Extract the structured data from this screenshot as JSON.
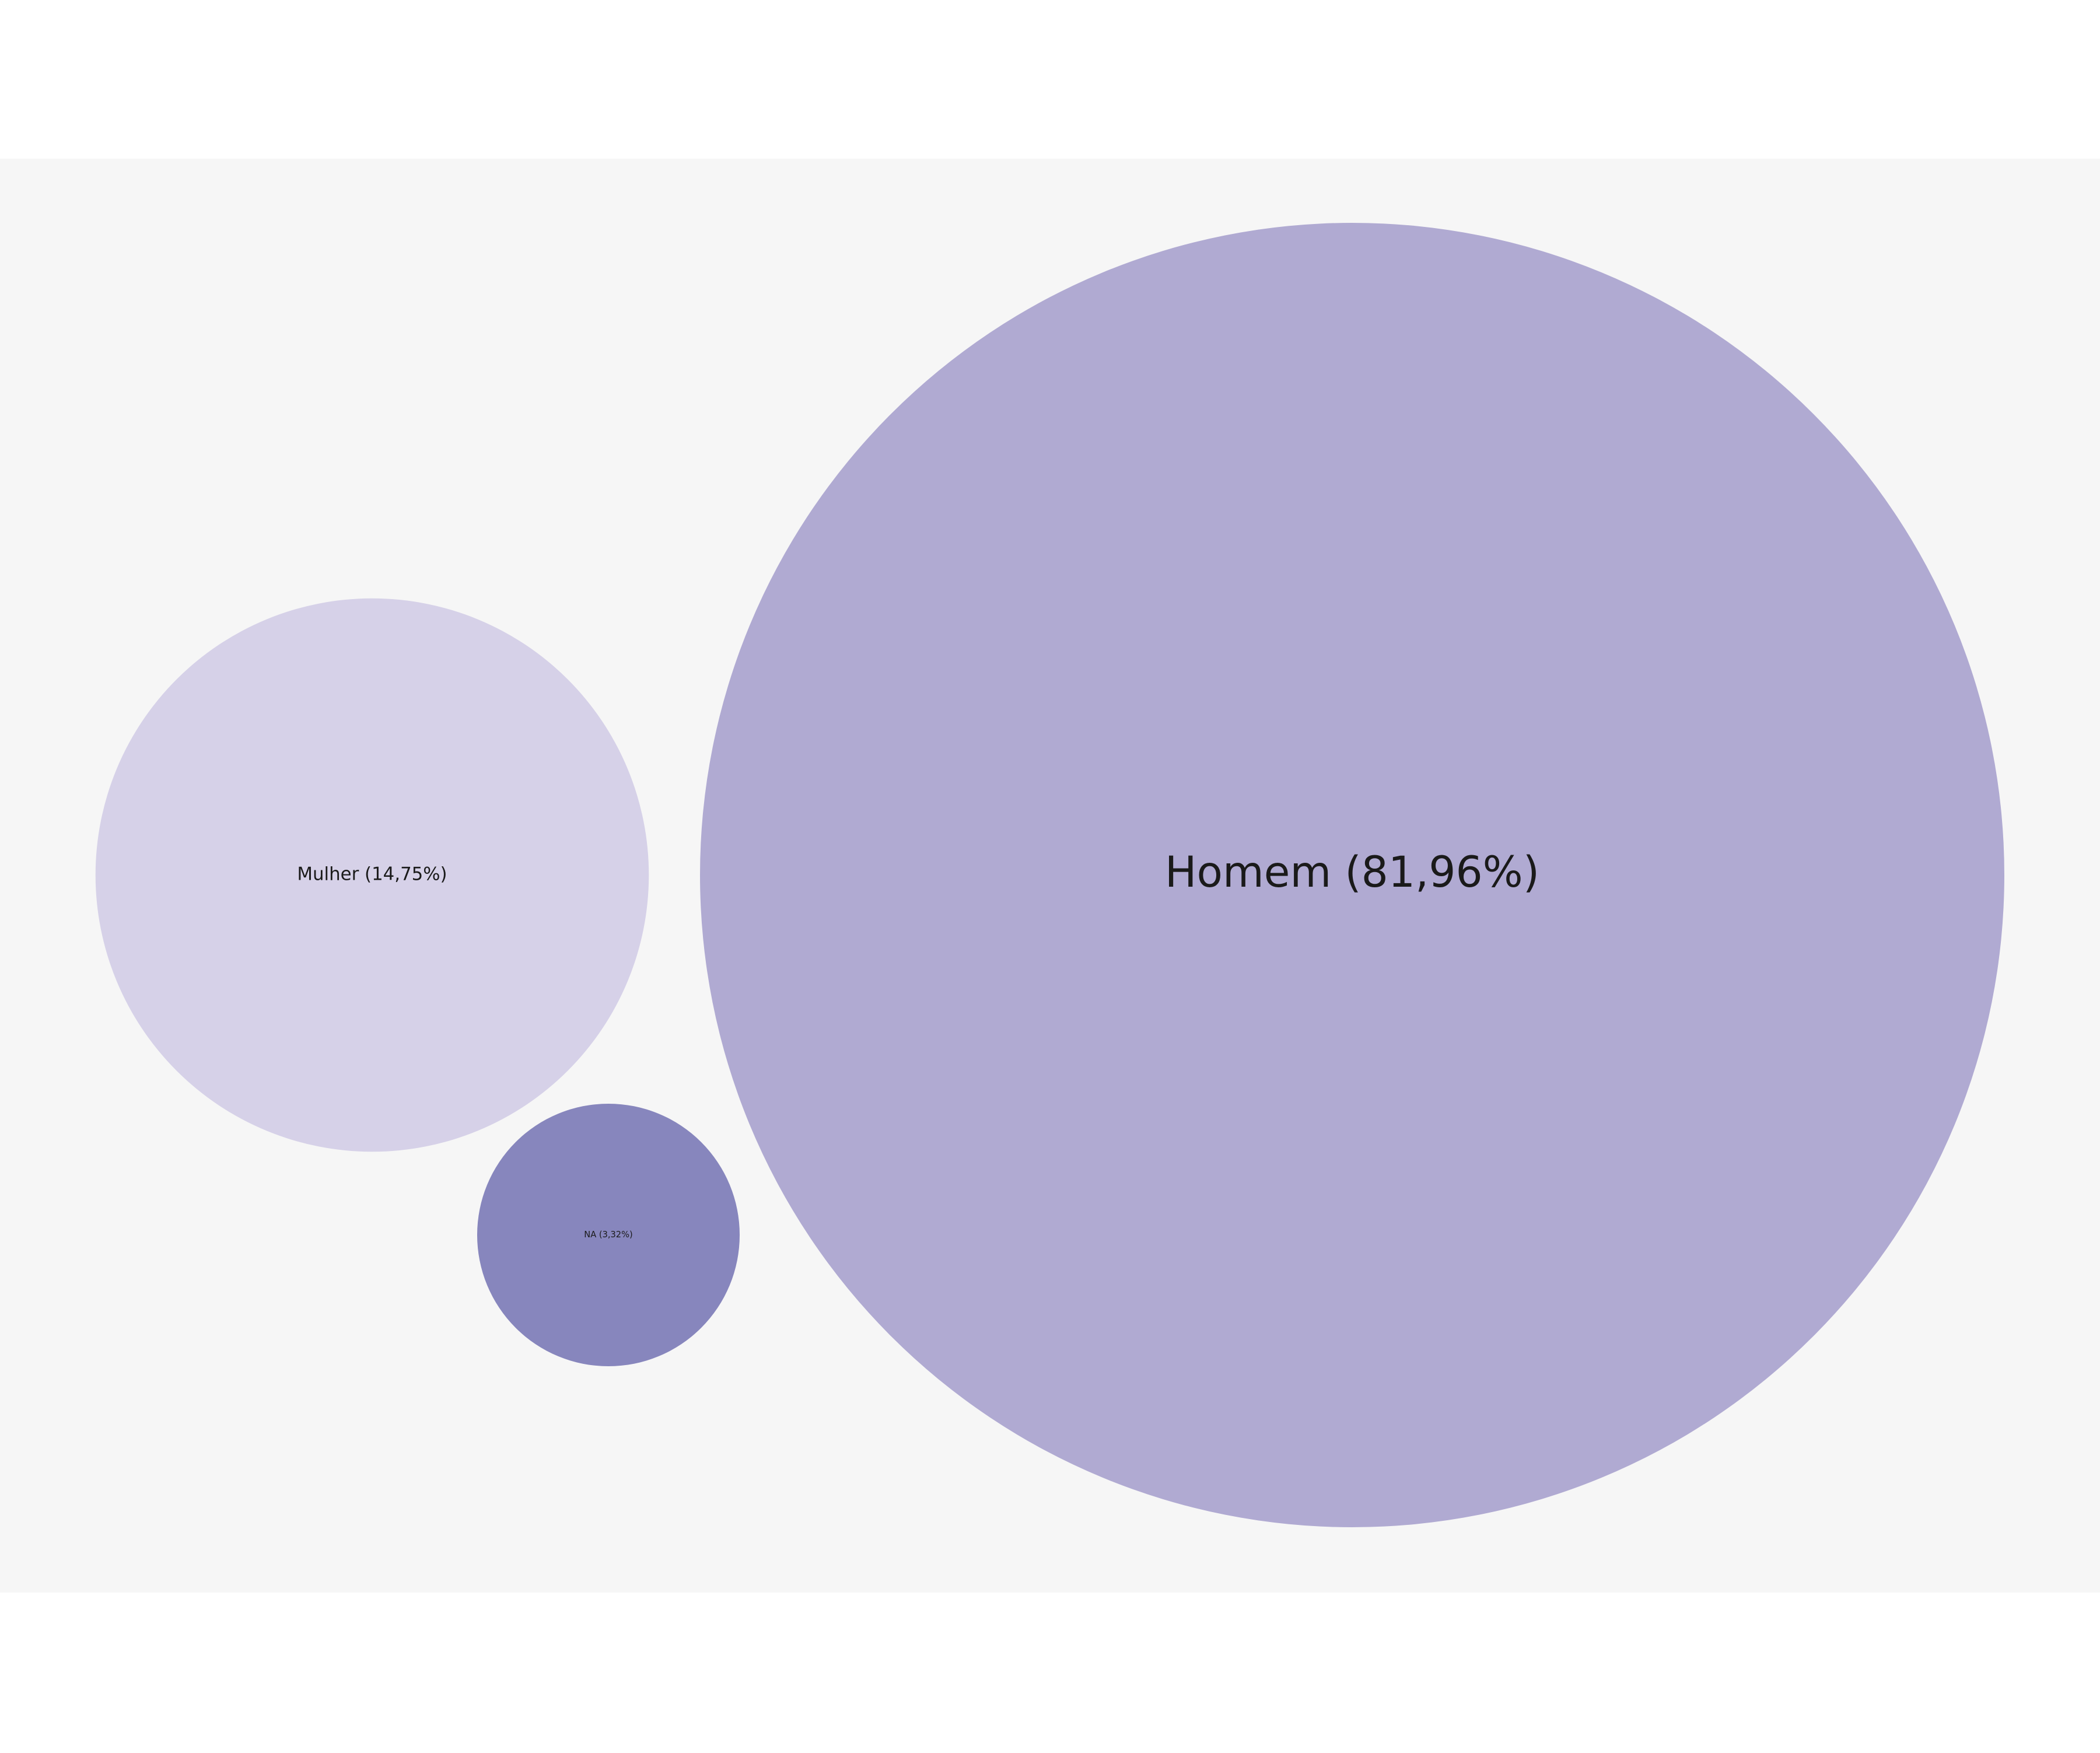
{
  "chart_data": {
    "type": "bubble",
    "background_color": "#f6f6f6",
    "page_color": "#ffffff",
    "series": [
      {
        "label": "Homem (81,96%)",
        "value": 81.96,
        "color": "#b0aad2"
      },
      {
        "label": "Mulher (14,75%)",
        "value": 14.75,
        "color": "#d6d1e8"
      },
      {
        "label": "NA (3,32%)",
        "value": 3.32,
        "color": "#8786bd"
      }
    ]
  }
}
